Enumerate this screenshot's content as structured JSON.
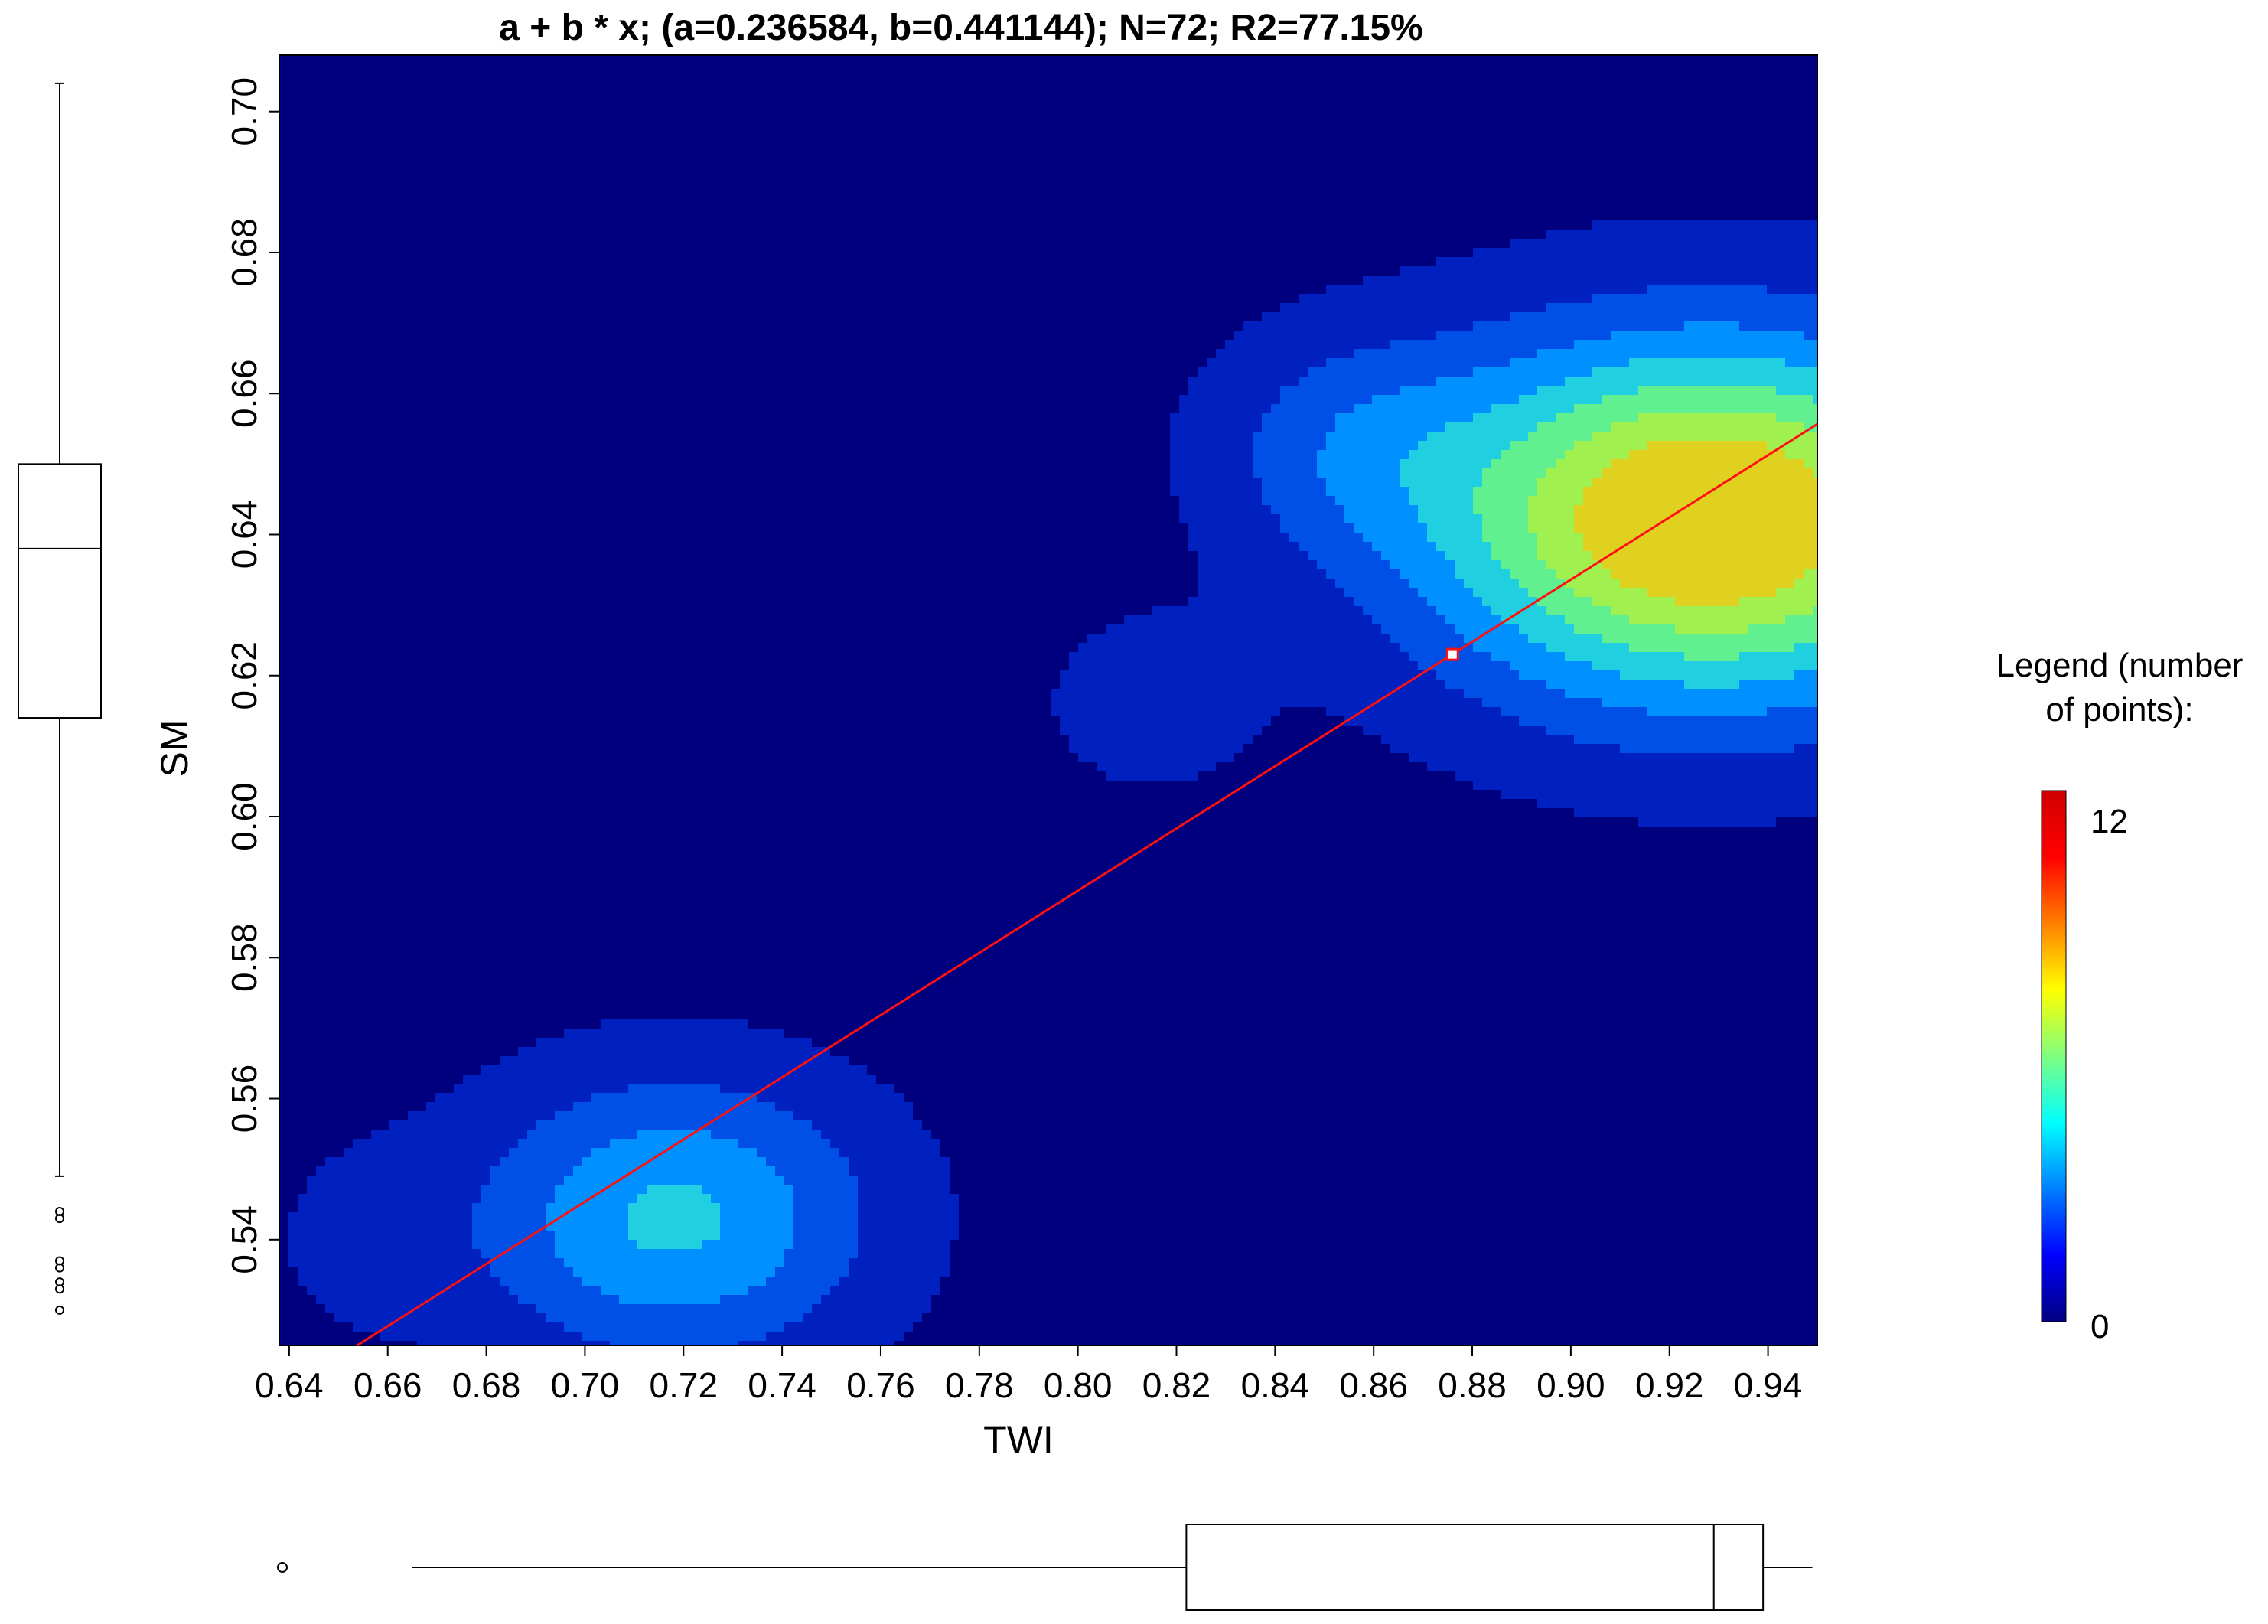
{
  "chart_data": {
    "type": "heatmap",
    "title": "a + b * x; (a=0.236584, b=0.441144); N=72; R2=77.15%",
    "xlabel": "TWI",
    "ylabel": "SM",
    "xlim": [
      0.638,
      0.95
    ],
    "ylim": [
      0.525,
      0.708
    ],
    "x_ticks": [
      "0.64",
      "0.66",
      "0.68",
      "0.70",
      "0.72",
      "0.74",
      "0.76",
      "0.78",
      "0.80",
      "0.82",
      "0.84",
      "0.86",
      "0.88",
      "0.90",
      "0.92",
      "0.94"
    ],
    "y_ticks": [
      "0.54",
      "0.56",
      "0.58",
      "0.60",
      "0.62",
      "0.64",
      "0.66",
      "0.68",
      "0.70"
    ],
    "regression": {
      "a": 0.236584,
      "b": 0.441144
    },
    "marked_point": {
      "x": 0.876,
      "y": 0.623
    },
    "density_levels": 8,
    "density_colors": [
      "#00007f",
      "#0020c0",
      "#0050e8",
      "#0090ff",
      "#20d0e0",
      "#60f090",
      "#a0f050",
      "#e0d020"
    ],
    "kernels": [
      {
        "x": 0.928,
        "y": 0.642,
        "sx": 0.04,
        "sy": 0.018,
        "w": 12.0
      },
      {
        "x": 0.718,
        "y": 0.543,
        "sx": 0.028,
        "sy": 0.014,
        "w": 5.5
      },
      {
        "x": 0.815,
        "y": 0.616,
        "sx": 0.014,
        "sy": 0.008,
        "w": 1.8
      },
      {
        "x": 0.855,
        "y": 0.653,
        "sx": 0.02,
        "sy": 0.011,
        "w": 2.3
      },
      {
        "x": 0.655,
        "y": 0.54,
        "sx": 0.014,
        "sy": 0.01,
        "w": 1.0
      }
    ],
    "legend": {
      "title_line1": "Legend (number",
      "title_line2": "of points):",
      "max_label": "12",
      "min_label": "0"
    },
    "legend_colors": [
      "#00007f",
      "#0000ff",
      "#007fff",
      "#00ffff",
      "#7fff7f",
      "#ffff00",
      "#ff7f00",
      "#ff0000",
      "#d00000"
    ],
    "y_boxplot": {
      "whisker_low": 0.549,
      "q1": 0.614,
      "median": 0.638,
      "q3": 0.65,
      "whisker_high": 0.704,
      "outliers": [
        0.544,
        0.543,
        0.537,
        0.536,
        0.534,
        0.533,
        0.53
      ]
    },
    "x_boxplot": {
      "whisker_low": 0.665,
      "q1": 0.822,
      "median": 0.929,
      "q3": 0.939,
      "whisker_high": 0.949,
      "outliers": [
        0.638
      ]
    },
    "colors": {
      "regression_line": "#ff1010",
      "box_stroke": "#000000",
      "frame": "#000000"
    }
  }
}
